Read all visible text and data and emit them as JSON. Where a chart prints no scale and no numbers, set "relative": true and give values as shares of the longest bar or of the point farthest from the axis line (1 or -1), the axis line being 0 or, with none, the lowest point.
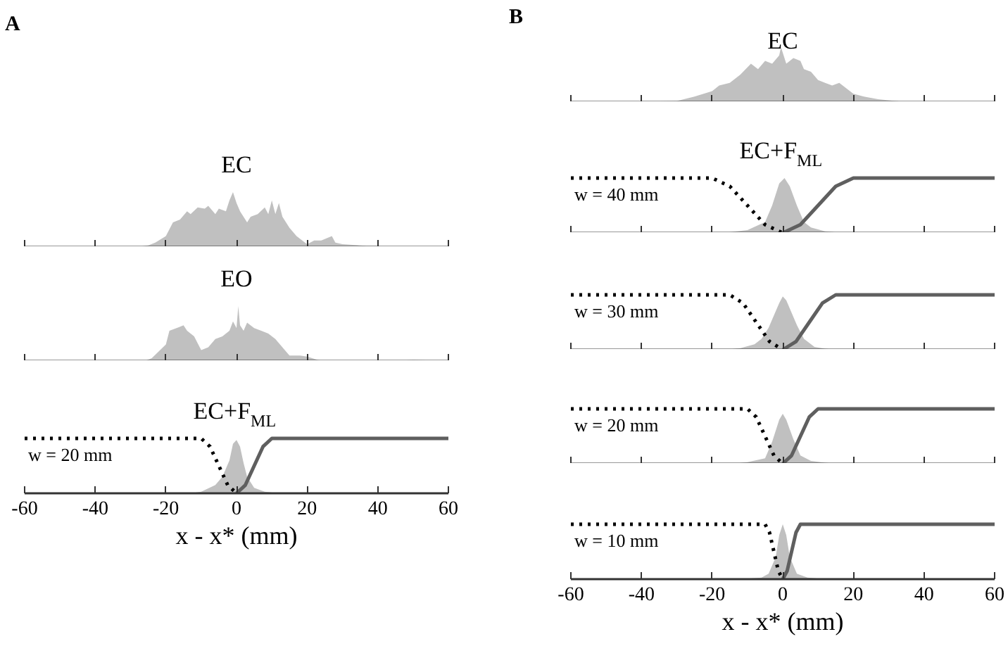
{
  "chart_data": [
    {
      "type": "area",
      "title": "A",
      "subtitle": "EC",
      "relative": true,
      "xlim": [
        -60,
        60
      ],
      "xticks": [
        -60,
        -40,
        -20,
        0,
        20,
        40,
        60
      ],
      "tick_labels": false,
      "grid": false,
      "series": [
        {
          "color": "#c0c0c0",
          "x": [
            -28,
            -25,
            -23,
            -20,
            -18,
            -16,
            -14,
            -13,
            -11,
            -9,
            -8,
            -6,
            -5,
            -3,
            -2,
            -1,
            0,
            1,
            3,
            4,
            6,
            8,
            9,
            10,
            11,
            12,
            13,
            15,
            17,
            19,
            20,
            22,
            24,
            27,
            28,
            30,
            33,
            37,
            40,
            42
          ],
          "values": [
            0,
            0.03,
            0.08,
            0.2,
            0.45,
            0.5,
            0.65,
            0.6,
            0.72,
            0.7,
            0.75,
            0.6,
            0.7,
            0.65,
            0.85,
            1,
            0.8,
            0.65,
            0.45,
            0.55,
            0.6,
            0.72,
            0.6,
            0.85,
            0.6,
            0.8,
            0.55,
            0.35,
            0.2,
            0.1,
            0.05,
            0.12,
            0.12,
            0.2,
            0.08,
            0.05,
            0.04,
            0.02,
            0.02,
            0
          ]
        }
      ]
    },
    {
      "type": "area",
      "title": "EO",
      "relative": true,
      "xlim": [
        -60,
        60
      ],
      "xticks": [
        -60,
        -40,
        -20,
        0,
        20,
        40,
        60
      ],
      "tick_labels": false,
      "grid": false,
      "series": [
        {
          "color": "#c0c0c0",
          "x": [
            -26,
            -24,
            -20,
            -19,
            -17,
            -15,
            -14,
            -12,
            -10,
            -8,
            -6,
            -4,
            -2,
            -1,
            0,
            0.5,
            1,
            2,
            3,
            5,
            7,
            9,
            11,
            13,
            15,
            18,
            20,
            23,
            25,
            45,
            50,
            55,
            57
          ],
          "values": [
            0,
            0.05,
            0.3,
            0.55,
            0.6,
            0.65,
            0.55,
            0.45,
            0.2,
            0.25,
            0.4,
            0.45,
            0.55,
            0.72,
            0.6,
            1,
            0.65,
            0.55,
            0.7,
            0.6,
            0.55,
            0.5,
            0.4,
            0.25,
            0.1,
            0.1,
            0.08,
            0.02,
            0,
            0,
            0.02,
            0.01,
            0
          ]
        }
      ]
    },
    {
      "type": "area",
      "title": "EC+F$_{ML}$",
      "xlabel": "x - x* (mm)",
      "annotations": [
        "w = 20 mm"
      ],
      "relative": true,
      "xlim": [
        -60,
        60
      ],
      "xticks": [
        -60,
        -40,
        -20,
        0,
        20,
        40,
        60
      ],
      "tick_labels": "x",
      "grid": false,
      "series": [
        {
          "color": "#c0c0c0",
          "x": [
            -13,
            -10,
            -6,
            -4,
            -2,
            -1,
            0,
            1,
            2,
            3,
            5,
            8,
            12
          ],
          "values": [
            0,
            0.03,
            0.15,
            0.3,
            0.6,
            0.9,
            0.97,
            0.85,
            0.55,
            0.3,
            0.1,
            0.03,
            0
          ]
        },
        {
          "type": "line",
          "color": "#000000",
          "line_style": "dotted",
          "x": [
            -60,
            -10,
            -7.5,
            -5,
            -2.5,
            0
          ],
          "values": [
            1,
            1,
            0.85,
            0.5,
            0.15,
            0
          ]
        },
        {
          "type": "line",
          "color": "#5f5f5f",
          "line_style": "solid",
          "x": [
            0,
            2.5,
            5,
            7.5,
            10,
            60
          ],
          "values": [
            0,
            0.15,
            0.5,
            0.85,
            1,
            1
          ]
        }
      ]
    },
    {
      "type": "area",
      "title": "B",
      "subtitle": "EC",
      "relative": true,
      "xlim": [
        -60,
        60
      ],
      "xticks": [
        -60,
        -40,
        -20,
        0,
        20,
        40,
        60
      ],
      "tick_labels": false,
      "grid": false,
      "series": [
        {
          "color": "#c0c0c0",
          "x": [
            -37,
            -30,
            -25,
            -20,
            -18,
            -15,
            -12,
            -9,
            -7,
            -5,
            -3,
            -1,
            -0.5,
            1,
            3,
            5,
            6,
            8,
            10,
            12,
            14,
            16,
            18,
            20,
            23,
            27,
            32,
            35
          ],
          "values": [
            0.01,
            0.02,
            0.1,
            0.2,
            0.3,
            0.35,
            0.5,
            0.7,
            0.6,
            0.75,
            0.7,
            0.85,
            1,
            0.7,
            0.8,
            0.75,
            0.6,
            0.55,
            0.4,
            0.35,
            0.3,
            0.35,
            0.25,
            0.15,
            0.1,
            0.05,
            0.02,
            0
          ]
        }
      ]
    },
    {
      "type": "area",
      "title": "EC+F$_{ML}$",
      "annotations": [
        "w = 40 mm"
      ],
      "relative": true,
      "xlim": [
        -60,
        60
      ],
      "xticks": [
        -60,
        -40,
        -20,
        0,
        20,
        40,
        60
      ],
      "tick_labels": false,
      "grid": false,
      "series": [
        {
          "color": "#c0c0c0",
          "x": [
            -17,
            -10,
            -5,
            -3,
            -1,
            0.5,
            2,
            4,
            6,
            8,
            12,
            17
          ],
          "values": [
            0,
            0.05,
            0.2,
            0.5,
            0.9,
            1,
            0.85,
            0.5,
            0.2,
            0.1,
            0.03,
            0
          ]
        },
        {
          "type": "line",
          "color": "#000000",
          "line_style": "dotted",
          "x": [
            -60,
            -20,
            -15,
            -10,
            -5,
            0
          ],
          "values": [
            1,
            1,
            0.85,
            0.5,
            0.15,
            0
          ]
        },
        {
          "type": "line",
          "color": "#5f5f5f",
          "line_style": "solid",
          "x": [
            0,
            5,
            10,
            15,
            20,
            60
          ],
          "values": [
            0,
            0.15,
            0.5,
            0.85,
            1,
            1
          ]
        }
      ]
    },
    {
      "type": "area",
      "annotations": [
        "w = 30 mm"
      ],
      "relative": true,
      "xlim": [
        -60,
        60
      ],
      "xticks": [
        -60,
        -40,
        -20,
        0,
        20,
        40,
        60
      ],
      "tick_labels": false,
      "grid": false,
      "series": [
        {
          "color": "#c0c0c0",
          "x": [
            -16,
            -12,
            -8,
            -6,
            -4,
            -3,
            -1,
            0,
            1,
            2,
            4,
            6,
            9,
            12,
            15
          ],
          "values": [
            0,
            0.03,
            0.1,
            0.2,
            0.4,
            0.55,
            0.85,
            0.97,
            0.9,
            0.75,
            0.45,
            0.2,
            0.05,
            0.02,
            0
          ]
        },
        {
          "type": "line",
          "color": "#000000",
          "line_style": "dotted",
          "x": [
            -60,
            -15,
            -11.25,
            -7.5,
            -3.75,
            0
          ],
          "values": [
            1,
            1,
            0.85,
            0.5,
            0.15,
            0
          ]
        },
        {
          "type": "line",
          "color": "#5f5f5f",
          "line_style": "solid",
          "x": [
            0,
            3.75,
            7.5,
            11.25,
            15,
            60
          ],
          "values": [
            0,
            0.15,
            0.5,
            0.85,
            1,
            1
          ]
        }
      ]
    },
    {
      "type": "area",
      "annotations": [
        "w = 20 mm"
      ],
      "relative": true,
      "xlim": [
        -60,
        60
      ],
      "xticks": [
        -60,
        -40,
        -20,
        0,
        20,
        40,
        60
      ],
      "tick_labels": false,
      "grid": false,
      "series": [
        {
          "color": "#c0c0c0",
          "x": [
            -14,
            -10,
            -5,
            -3,
            -1,
            0,
            1,
            3,
            5,
            8,
            12,
            15
          ],
          "values": [
            0,
            0.03,
            0.1,
            0.4,
            0.8,
            0.91,
            0.8,
            0.45,
            0.15,
            0.05,
            0.02,
            0
          ]
        },
        {
          "type": "line",
          "color": "#000000",
          "line_style": "dotted",
          "x": [
            -60,
            -10,
            -7.5,
            -5,
            -2.5,
            0
          ],
          "values": [
            1,
            1,
            0.85,
            0.5,
            0.15,
            0
          ]
        },
        {
          "type": "line",
          "color": "#5f5f5f",
          "line_style": "solid",
          "x": [
            0,
            2.5,
            5,
            7.5,
            10,
            60
          ],
          "values": [
            0,
            0.15,
            0.5,
            0.85,
            1,
            1
          ]
        }
      ]
    },
    {
      "type": "area",
      "xlabel": "x - x* (mm)",
      "annotations": [
        "w = 10 mm"
      ],
      "relative": true,
      "xlim": [
        -60,
        60
      ],
      "xticks": [
        -60,
        -40,
        -20,
        0,
        20,
        40,
        60
      ],
      "tick_labels": "x",
      "grid": false,
      "series": [
        {
          "color": "#c0c0c0",
          "x": [
            -12,
            -6,
            -4,
            -2,
            -1,
            0,
            1,
            2,
            4,
            7,
            12
          ],
          "values": [
            0,
            0.03,
            0.1,
            0.4,
            0.8,
            1,
            0.8,
            0.4,
            0.1,
            0.03,
            0
          ]
        },
        {
          "type": "line",
          "color": "#000000",
          "line_style": "dotted",
          "x": [
            -60,
            -5,
            -3.75,
            -2.5,
            -1.25,
            0
          ],
          "values": [
            1,
            1,
            0.85,
            0.5,
            0.15,
            0
          ]
        },
        {
          "type": "line",
          "color": "#5f5f5f",
          "line_style": "solid",
          "x": [
            0,
            1.25,
            2.5,
            3.75,
            5,
            60
          ],
          "values": [
            0,
            0.15,
            0.5,
            0.85,
            1,
            1
          ]
        }
      ]
    }
  ]
}
